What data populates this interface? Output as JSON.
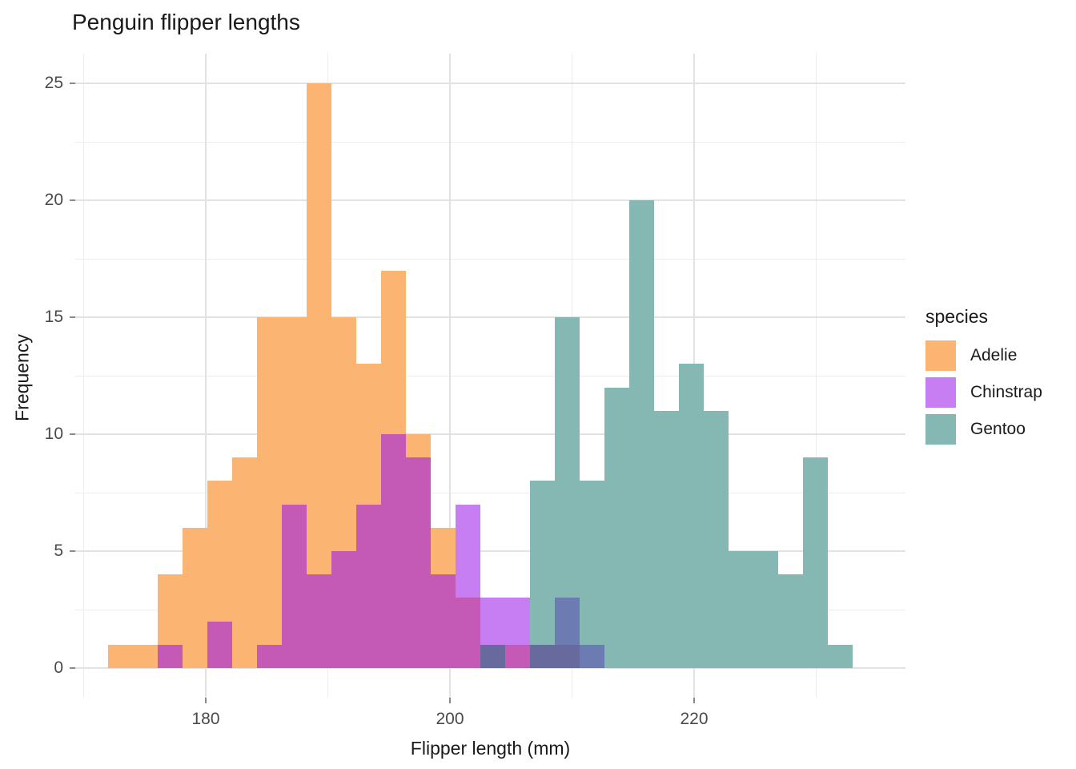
{
  "title": "Penguin flipper lengths",
  "axes": {
    "x_title": "Flipper length (mm)",
    "y_title": "Frequency"
  },
  "legend": {
    "title": "species",
    "entries": [
      {
        "label": "Adelie",
        "color": "#FBB471"
      },
      {
        "label": "Chinstrap",
        "color": "#C67EF2"
      },
      {
        "label": "Gentoo",
        "color": "#85B8B2"
      }
    ]
  },
  "chart_data": {
    "type": "histogram",
    "title": "Penguin flipper lengths",
    "xlabel": "Flipper length (mm)",
    "ylabel": "Frequency",
    "bin_start": 172,
    "bin_width": 2.0333,
    "x_major_ticks": [
      180,
      200,
      220
    ],
    "x_minor_ticks": [
      170,
      190,
      210,
      230
    ],
    "y_major_ticks": [
      0,
      5,
      10,
      15,
      20,
      25
    ],
    "y_minor_ticks": [
      2.5,
      7.5,
      12.5,
      17.5,
      22.5
    ],
    "xlim": [
      169.3,
      237.3
    ],
    "ylim": [
      -1.25,
      26.25
    ],
    "grid": true,
    "legend_position": "right",
    "series": [
      {
        "name": "Adelie",
        "color": "#FBB471",
        "counts": [
          1,
          1,
          4,
          6,
          8,
          9,
          15,
          15,
          25,
          15,
          13,
          17,
          10,
          6,
          3,
          1,
          1,
          1,
          1,
          0,
          0,
          0,
          0,
          0,
          0,
          0,
          0,
          0,
          0,
          0
        ]
      },
      {
        "name": "Chinstrap",
        "color": "#C67EF2",
        "counts": [
          0,
          0,
          1,
          0,
          2,
          0,
          1,
          7,
          4,
          5,
          7,
          10,
          9,
          4,
          7,
          3,
          3,
          1,
          3,
          1,
          0,
          0,
          0,
          0,
          0,
          0,
          0,
          0,
          0,
          0
        ]
      },
      {
        "name": "Gentoo",
        "color": "#85B8B2",
        "counts": [
          0,
          0,
          0,
          0,
          0,
          0,
          0,
          0,
          0,
          0,
          0,
          0,
          0,
          0,
          0,
          1,
          0,
          8,
          15,
          8,
          12,
          20,
          11,
          13,
          11,
          5,
          5,
          4,
          9,
          1
        ]
      }
    ],
    "overlap_colors": {
      "A": "#FBB471",
      "C": "#C67EF2",
      "G": "#85B8B2",
      "AC": "#C45AB6",
      "AG": "#669E7C",
      "CG": "#6C7BB2",
      "ACG": "#686A9D"
    }
  }
}
